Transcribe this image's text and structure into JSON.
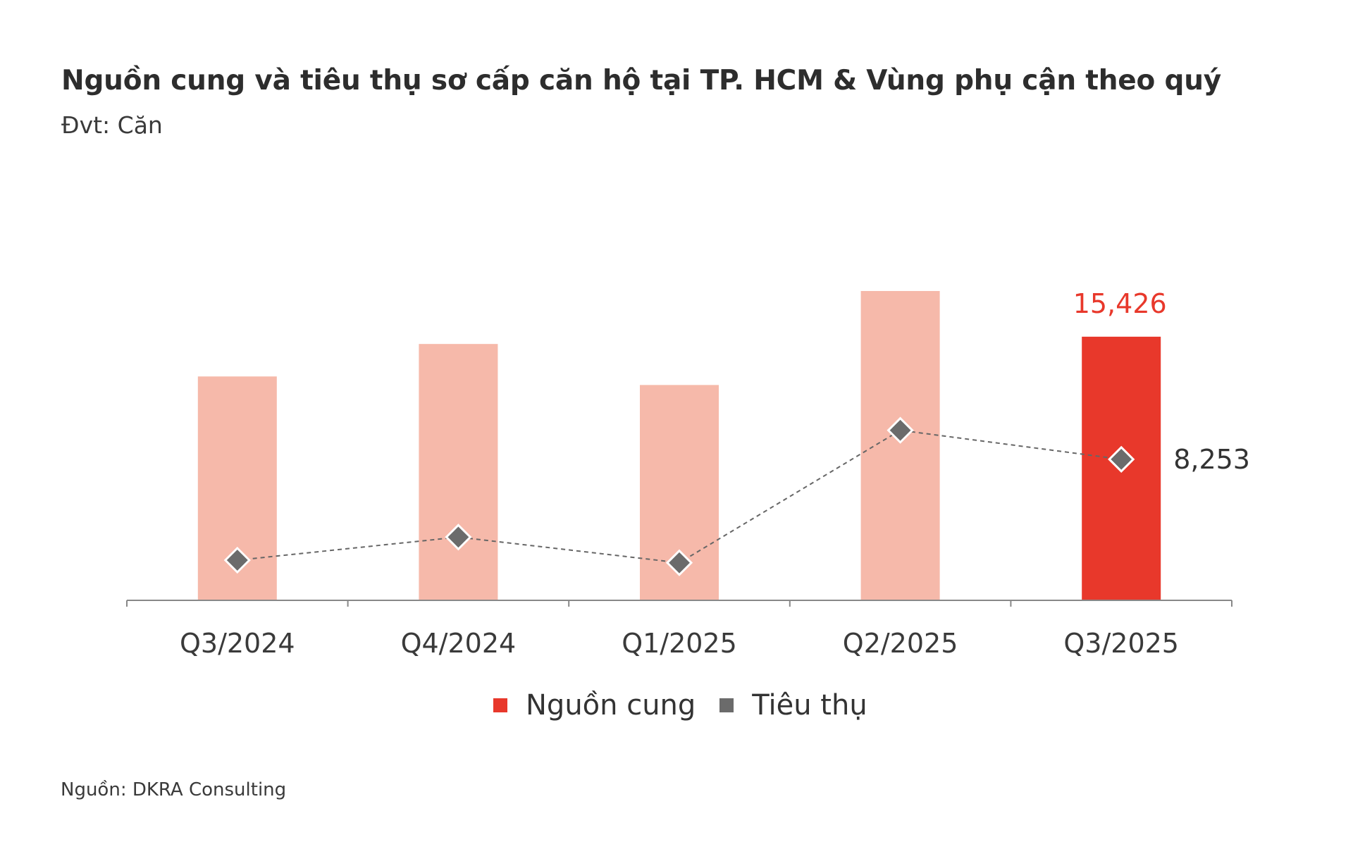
{
  "title": "Nguồn cung và tiêu thụ sơ cấp căn hộ tại TP. HCM & Vùng phụ cận theo quý",
  "subtitle": "Đvt: Căn",
  "source": "Nguồn: DKRA Consulting",
  "colors": {
    "supply_bar": "#f6b9aa",
    "supply_highlight": "#e8382b",
    "consumption_marker": "#6b6b6b",
    "axis": "#888888",
    "line": "#666666"
  },
  "chart_data": {
    "type": "bar",
    "categories": [
      "Q3/2024",
      "Q4/2024",
      "Q1/2025",
      "Q2/2025",
      "Q3/2025"
    ],
    "series": [
      {
        "name": "Nguồn cung",
        "kind": "bar",
        "values": [
          13100,
          15000,
          12600,
          18100,
          15426
        ]
      },
      {
        "name": "Tiêu thụ",
        "kind": "line-diamond",
        "values": [
          2350,
          3700,
          2200,
          9950,
          8253
        ]
      }
    ],
    "ylim": [
      0,
      23500
    ],
    "highlight_index": 4,
    "data_labels": {
      "supply_last": "15,426",
      "consumption_last": "8,253"
    },
    "legend": {
      "position": "bottom-center",
      "items": [
        {
          "label": "Nguồn cung",
          "color": "#e8382b"
        },
        {
          "label": "Tiêu thụ",
          "color": "#6b6b6b"
        }
      ]
    },
    "grid": false
  }
}
